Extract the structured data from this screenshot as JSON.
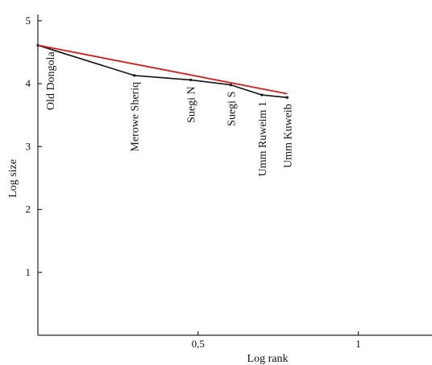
{
  "chart_data": {
    "type": "line",
    "title": "",
    "xlabel": "Log rank",
    "ylabel": "Log size",
    "xlim": [
      0,
      1.23
    ],
    "ylim": [
      0,
      5.1
    ],
    "x_ticks": [
      {
        "value": 0.5,
        "label": "0,5"
      },
      {
        "value": 1,
        "label": "1"
      }
    ],
    "y_ticks": [
      {
        "value": 1,
        "label": "1"
      },
      {
        "value": 2,
        "label": "2"
      },
      {
        "value": 3,
        "label": "3"
      },
      {
        "value": 4,
        "label": "4"
      },
      {
        "value": 5,
        "label": "5"
      }
    ],
    "grid": false,
    "series": [
      {
        "color": "#111111",
        "points": [
          {
            "x": 0.0,
            "y": 4.61,
            "label": "Old Dongola"
          },
          {
            "x": 0.301,
            "y": 4.13,
            "label": "Merowe Sheriq"
          },
          {
            "x": 0.477,
            "y": 4.06,
            "label": "Suegi N"
          },
          {
            "x": 0.602,
            "y": 3.98,
            "label": "Suegi S"
          },
          {
            "x": 0.699,
            "y": 3.82,
            "label": "Umm Ruweim 1"
          },
          {
            "x": 0.778,
            "y": 3.78,
            "label": "Umm Kuweib"
          }
        ]
      },
      {
        "color": "#cc1f1f",
        "points": [
          {
            "x": 0.0,
            "y": 4.61
          },
          {
            "x": 0.778,
            "y": 3.84
          }
        ]
      }
    ]
  }
}
